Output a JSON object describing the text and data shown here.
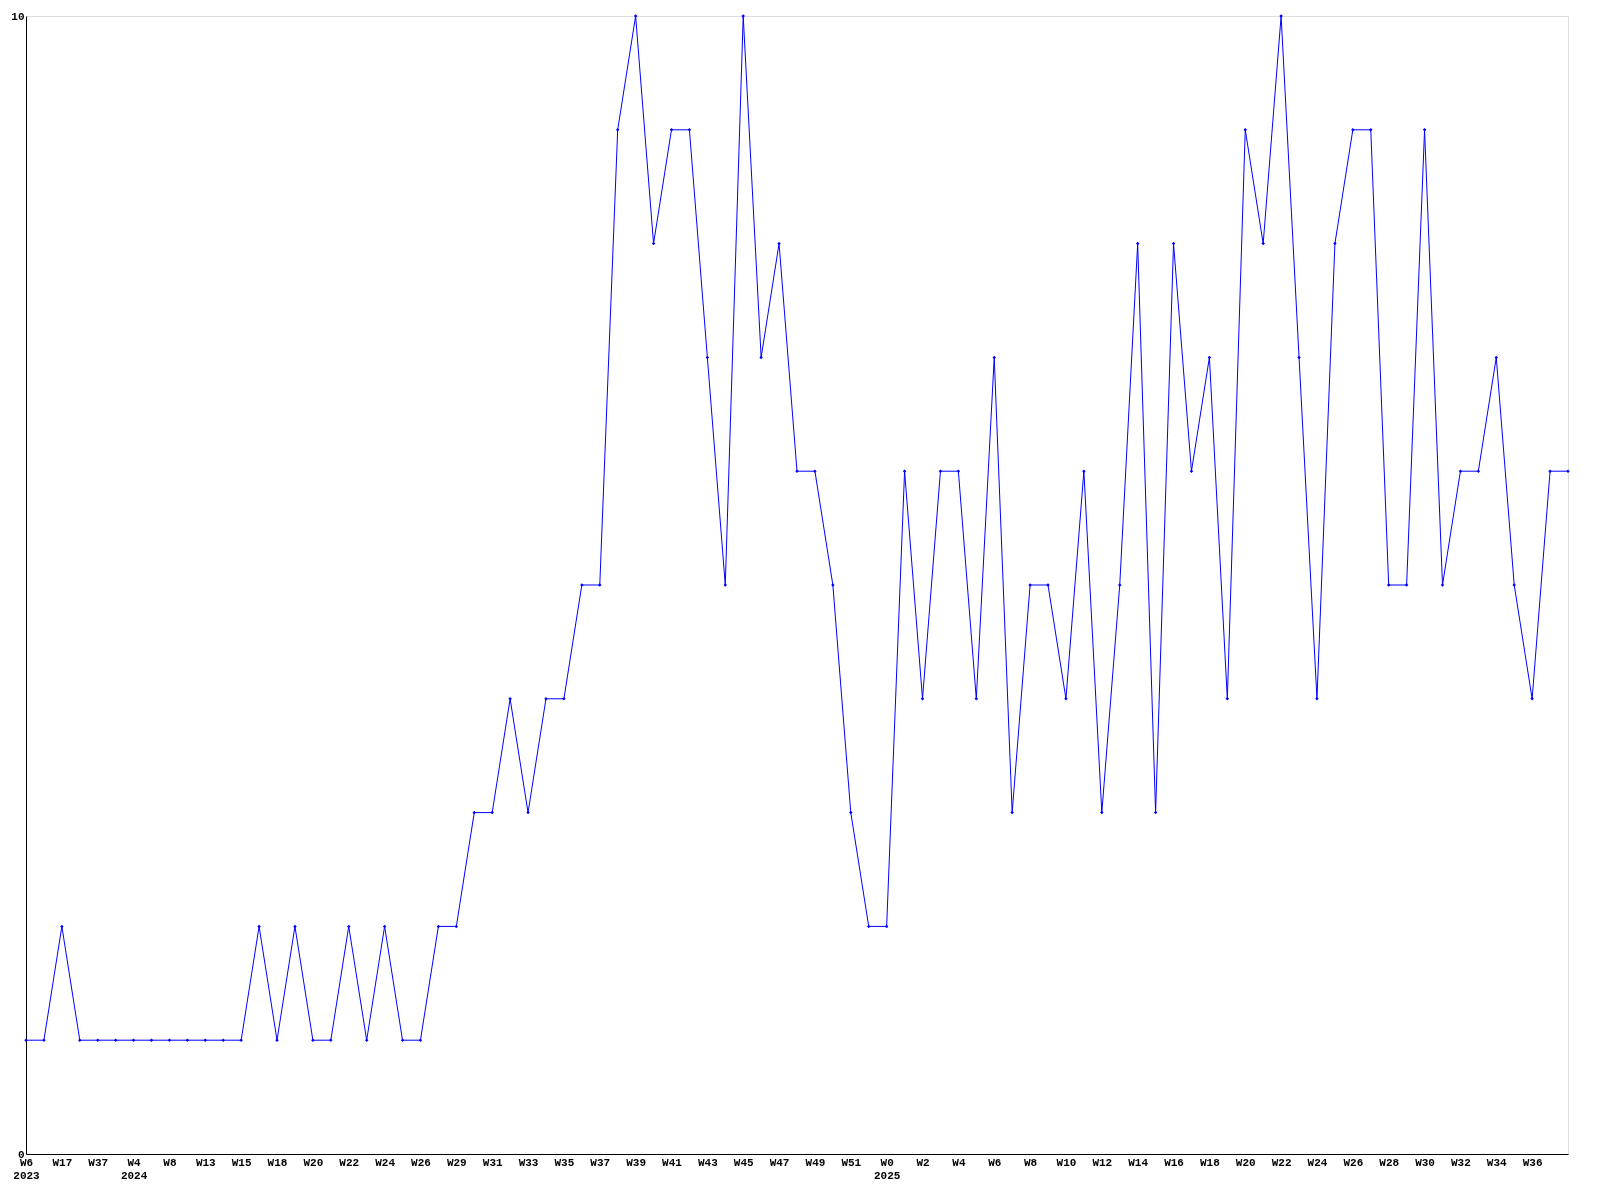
{
  "chart_data": {
    "type": "line",
    "categories": [
      "W6\n2023",
      null,
      "W17",
      null,
      "W37",
      null,
      "W4\n2024",
      null,
      "W8",
      null,
      "W13",
      null,
      "W15",
      null,
      "W18",
      null,
      "W20",
      null,
      "W22",
      null,
      "W24",
      null,
      "W26",
      null,
      "W29",
      null,
      "W31",
      null,
      "W33",
      null,
      "W35",
      null,
      "W37",
      null,
      "W39",
      null,
      "W41",
      null,
      "W43",
      null,
      "W45",
      null,
      "W47",
      null,
      "W49",
      null,
      "W51",
      null,
      "W0\n2025",
      null,
      "W2",
      null,
      "W4",
      null,
      "W6",
      null,
      "W8",
      null,
      "W10",
      null,
      "W12",
      null,
      "W14",
      null,
      "W16",
      null,
      "W18",
      null,
      "W20",
      null,
      "W22",
      null,
      "W24",
      null,
      "W26",
      null,
      "W28",
      null,
      "W30",
      null,
      "W32",
      null,
      "W34",
      null,
      "W36",
      null,
      null
    ],
    "series": [
      {
        "color": "#0000ff",
        "values": [
          1,
          1,
          2,
          1,
          1,
          1,
          1,
          1,
          1,
          1,
          1,
          1,
          1,
          2,
          1,
          2,
          1,
          1,
          2,
          1,
          2,
          1,
          1,
          2,
          2,
          3,
          3,
          4,
          3,
          4,
          4,
          5,
          5,
          9,
          10,
          8,
          9,
          9,
          7,
          5,
          10,
          7,
          8,
          6,
          6,
          5,
          3,
          2,
          2,
          6,
          4,
          6,
          6,
          4,
          7,
          3,
          5,
          5,
          4,
          6,
          3,
          5,
          8,
          3,
          8,
          6,
          7,
          4,
          9,
          8,
          10,
          7,
          4,
          8,
          9,
          9,
          5,
          5,
          9,
          5,
          6,
          6,
          7,
          5,
          4,
          6,
          6
        ]
      }
    ],
    "ylim": [
      0,
      10
    ],
    "yticks": [
      0,
      10
    ],
    "grid": false,
    "legend": false,
    "marker": "diamond",
    "line_style": "solid"
  }
}
